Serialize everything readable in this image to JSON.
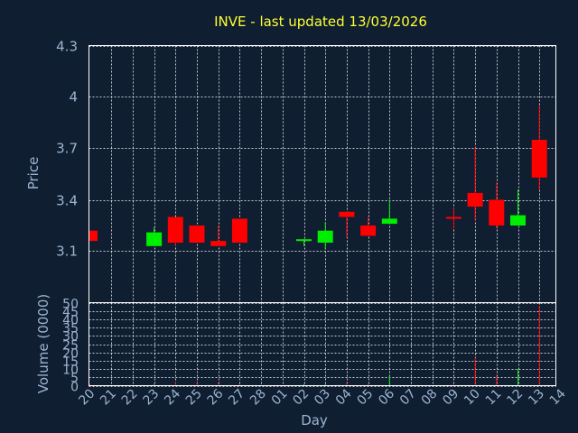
{
  "chart_data": {
    "type": "candlestick",
    "title": "INVE - last updated 13/03/2026",
    "xlabel": "Day",
    "price_panel": {
      "ylabel": "Price",
      "ylim": [
        2.8,
        4.3
      ],
      "yticks": [
        "4.3",
        "4",
        "3.7",
        "3.4",
        "3.1"
      ],
      "ytick_values": [
        4.3,
        4.0,
        3.7,
        3.4,
        3.1
      ],
      "grid": true
    },
    "volume_panel": {
      "ylabel": "Volume (0000)",
      "ylim": [
        0,
        50
      ],
      "yticks": [
        "50",
        "45",
        "40",
        "35",
        "30",
        "25",
        "20",
        "15",
        "10",
        "5",
        "0"
      ],
      "ytick_values": [
        50,
        45,
        40,
        35,
        30,
        25,
        20,
        15,
        10,
        5,
        0
      ],
      "grid": true
    },
    "x_labels": [
      "20",
      "21",
      "22",
      "23",
      "24",
      "25",
      "26",
      "27",
      "28",
      "01",
      "02",
      "03",
      "04",
      "05",
      "06",
      "07",
      "08",
      "09",
      "10",
      "11",
      "12",
      "13",
      "14"
    ],
    "colors": {
      "up": "#00ee00",
      "down": "#ff0000",
      "title": "#ffff33",
      "axis_text": "#9cb4d0",
      "background": "#0f1e31"
    },
    "candles": [
      {
        "day": "20",
        "open": 3.22,
        "close": 3.16,
        "high": 3.22,
        "low": 3.16,
        "volume": 1
      },
      {
        "day": "23",
        "open": 3.13,
        "close": 3.21,
        "high": 3.24,
        "low": 3.13,
        "volume": 1
      },
      {
        "day": "24",
        "open": 3.3,
        "close": 3.15,
        "high": 3.3,
        "low": 3.13,
        "volume": 2
      },
      {
        "day": "25",
        "open": 3.25,
        "close": 3.15,
        "high": 3.25,
        "low": 3.15,
        "volume": 2
      },
      {
        "day": "26",
        "open": 3.16,
        "close": 3.13,
        "high": 3.25,
        "low": 3.13,
        "volume": 2
      },
      {
        "day": "27",
        "open": 3.29,
        "close": 3.15,
        "high": 3.29,
        "low": 3.15,
        "volume": 1
      },
      {
        "day": "02",
        "open": 3.16,
        "close": 3.17,
        "high": 3.17,
        "low": 3.13,
        "volume": 1
      },
      {
        "day": "03",
        "open": 3.15,
        "close": 3.22,
        "high": 3.27,
        "low": 3.11,
        "volume": 1
      },
      {
        "day": "04",
        "open": 3.33,
        "close": 3.3,
        "high": 3.33,
        "low": 3.18,
        "volume": 2
      },
      {
        "day": "05",
        "open": 3.25,
        "close": 3.19,
        "high": 3.3,
        "low": 3.19,
        "volume": 1
      },
      {
        "day": "06",
        "open": 3.26,
        "close": 3.29,
        "high": 3.4,
        "low": 3.26,
        "volume": 6
      },
      {
        "day": "09",
        "open": 3.3,
        "close": 3.29,
        "high": 3.35,
        "low": 3.23,
        "volume": 1
      },
      {
        "day": "10",
        "open": 3.44,
        "close": 3.36,
        "high": 3.71,
        "low": 3.28,
        "volume": 17
      },
      {
        "day": "11",
        "open": 3.4,
        "close": 3.25,
        "high": 3.5,
        "low": 3.23,
        "volume": 6
      },
      {
        "day": "12",
        "open": 3.25,
        "close": 3.31,
        "high": 3.46,
        "low": 3.25,
        "volume": 10
      },
      {
        "day": "13",
        "open": 3.75,
        "close": 3.53,
        "high": 3.95,
        "low": 3.46,
        "volume": 48
      }
    ]
  }
}
